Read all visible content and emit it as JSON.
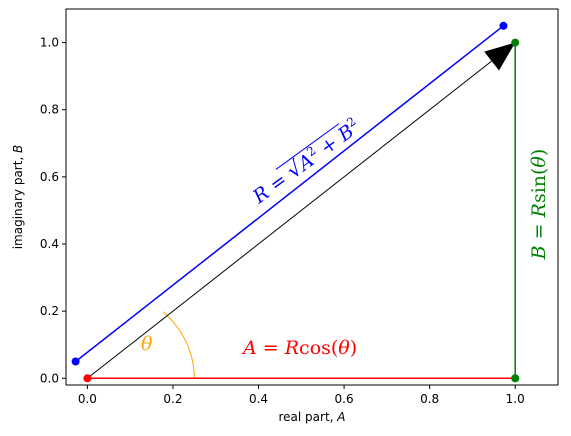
{
  "chart_data": {
    "type": "line",
    "title": "",
    "xlabel": {
      "text": "real part, ",
      "var": "A"
    },
    "ylabel": {
      "text": "imaginary part, ",
      "var": "B"
    },
    "xlim": [
      -0.05,
      1.1
    ],
    "ylim": [
      -0.02,
      1.1
    ],
    "xticks": [
      0.0,
      0.2,
      0.4,
      0.6,
      0.8,
      1.0
    ],
    "xtick_labels": [
      "0.0",
      "0.2",
      "0.4",
      "0.6",
      "0.8",
      "1.0"
    ],
    "yticks": [
      0.0,
      0.2,
      0.4,
      0.6,
      0.8,
      1.0
    ],
    "ytick_labels": [
      "0.0",
      "0.2",
      "0.4",
      "0.6",
      "0.8",
      "1.0"
    ],
    "grid": false,
    "angle_deg": 45,
    "lines": [
      {
        "x": [
          -0.0275,
          0.9725
        ],
        "y": [
          0.05,
          1.05
        ],
        "color": "#0000ff",
        "markers": true,
        "marker_color": "#0000ff"
      },
      {
        "x": [
          0.0,
          1.0
        ],
        "y": [
          0.0,
          0.0
        ],
        "color": "#ff0000",
        "markers": true,
        "marker_color": "#ff0000",
        "end_marker_color": "#008000"
      },
      {
        "x": [
          1.0,
          1.0
        ],
        "y": [
          0.0,
          1.0
        ],
        "color": "#008000",
        "markers": true,
        "marker_color": "#008000"
      }
    ],
    "arrow": {
      "from": [
        0.0,
        0.0
      ],
      "to": [
        1.0,
        1.0
      ],
      "color": "#000000"
    },
    "arc": {
      "center": [
        0.0,
        0.0
      ],
      "radius_x": 0.25,
      "theta_start": 0,
      "theta_end": 45,
      "color": "#ffa500"
    },
    "annotations": [
      {
        "id": "r",
        "parts": [
          "R",
          " = ",
          "√",
          "A",
          "2",
          " + ",
          "B",
          "2"
        ],
        "color": "#0000ff"
      },
      {
        "id": "a",
        "parts": [
          "A",
          " = ",
          "R",
          "cos(",
          "θ",
          ")"
        ],
        "color": "#ff0000"
      },
      {
        "id": "b",
        "parts": [
          "B",
          " = ",
          "R",
          "sin(",
          "θ",
          ")"
        ],
        "color": "#008000"
      },
      {
        "id": "theta",
        "parts": [
          "θ"
        ],
        "color": "#ffa500"
      }
    ]
  }
}
